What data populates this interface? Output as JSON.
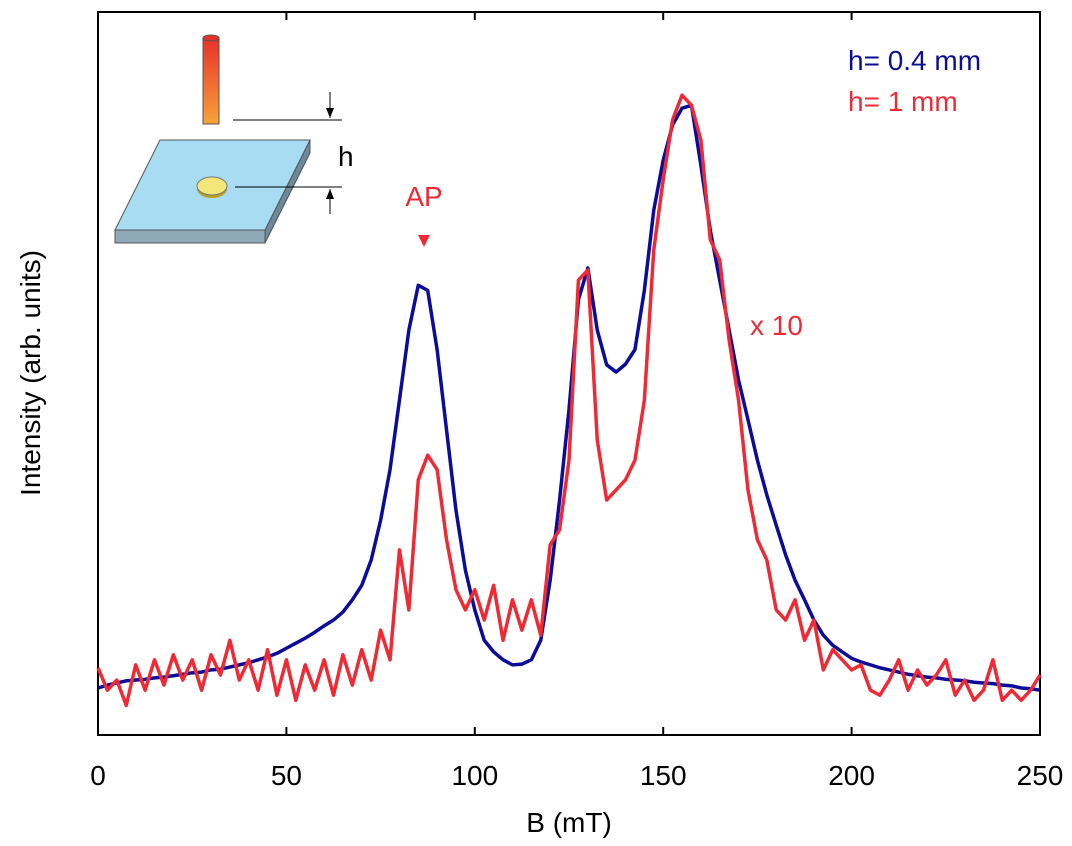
{
  "chart_data": {
    "type": "line",
    "x_label": "B (mT)",
    "y_label": "Intensity (arb. units)",
    "annotations": [
      "AP",
      "x 10",
      "h"
    ],
    "x": [
      0,
      2.5,
      5,
      7.5,
      10,
      12.5,
      15,
      17.5,
      20,
      22.5,
      25,
      27.5,
      30,
      32.5,
      35,
      37.5,
      40,
      42.5,
      45,
      47.5,
      50,
      52.5,
      55,
      57.5,
      60,
      62.5,
      65,
      67.5,
      70,
      72.5,
      75,
      77.5,
      80,
      82.5,
      85,
      87.5,
      90,
      92.5,
      95,
      97.5,
      100,
      102.5,
      105,
      107.5,
      110,
      112.5,
      115,
      117.5,
      120,
      122.5,
      125,
      127.5,
      130,
      132.5,
      135,
      137.5,
      140,
      142.5,
      145,
      147.5,
      150,
      152.5,
      155,
      157.5,
      160,
      162.5,
      165,
      167.5,
      170,
      172.5,
      175,
      177.5,
      180,
      182.5,
      185,
      187.5,
      190,
      192.5,
      195,
      197.5,
      200,
      202.5,
      205,
      207.5,
      210,
      212.5,
      215,
      217.5,
      220,
      222.5,
      225,
      227.5,
      230,
      232.5,
      235,
      237.5,
      240,
      242.5,
      245,
      247.5,
      250
    ],
    "series": [
      {
        "name": "h= 0.4 mm",
        "color": "#0c0c9a",
        "values": [
          6.5,
          6.9,
          7.2,
          7.5,
          7.6,
          7.7,
          7.9,
          8.0,
          8.2,
          8.4,
          8.6,
          8.7,
          9.0,
          9.1,
          9.4,
          9.7,
          10.0,
          10.4,
          10.8,
          11.3,
          12.0,
          12.7,
          13.4,
          14.2,
          15.1,
          15.9,
          17.0,
          18.7,
          20.7,
          24.2,
          29.7,
          36.7,
          46.3,
          56.0,
          62.2,
          61.5,
          53.3,
          42.2,
          31.1,
          22.8,
          17.3,
          13.1,
          11.5,
          10.4,
          9.7,
          9.8,
          10.4,
          13.1,
          21.4,
          32.5,
          45.0,
          60.2,
          64.6,
          56.0,
          51.2,
          50.2,
          51.3,
          53.3,
          61.5,
          72.6,
          79.5,
          84.4,
          86.7,
          87.1,
          78.8,
          69.8,
          62.9,
          56.0,
          49.1,
          43.6,
          38.0,
          33.2,
          29.0,
          24.9,
          21.4,
          18.7,
          15.9,
          13.8,
          12.4,
          11.5,
          10.6,
          10.1,
          9.7,
          9.3,
          9.0,
          8.7,
          8.4,
          8.2,
          8.0,
          7.9,
          7.7,
          7.6,
          7.5,
          7.3,
          7.2,
          7.1,
          6.9,
          6.8,
          6.5,
          6.4,
          6.2
        ]
      },
      {
        "name": "h= 1 mm",
        "color": "#ee2a35",
        "values": [
          9.3,
          6.2,
          7.6,
          4.1,
          9.7,
          6.2,
          10.4,
          6.9,
          11.1,
          7.6,
          10.4,
          6.2,
          11.1,
          8.3,
          13.1,
          7.6,
          10.4,
          6.2,
          11.8,
          5.5,
          10.4,
          4.8,
          9.7,
          6.2,
          10.4,
          5.5,
          11.1,
          6.9,
          11.8,
          7.6,
          14.5,
          10.4,
          25.6,
          17.3,
          35.3,
          38.7,
          36.7,
          27.0,
          20.1,
          17.3,
          20.1,
          15.9,
          20.7,
          13.1,
          18.7,
          14.5,
          18.7,
          13.8,
          26.3,
          28.4,
          38.0,
          62.9,
          64.3,
          40.8,
          32.5,
          33.9,
          35.3,
          38.0,
          46.3,
          67.1,
          76.8,
          85.1,
          88.5,
          87.1,
          82.3,
          68.5,
          65.7,
          54.6,
          46.3,
          33.9,
          27.0,
          24.2,
          17.3,
          15.9,
          18.7,
          13.1,
          15.9,
          9.0,
          11.8,
          10.4,
          9.0,
          9.7,
          6.2,
          5.5,
          7.6,
          10.4,
          6.2,
          9.0,
          6.9,
          8.3,
          10.4,
          5.5,
          7.6,
          4.8,
          6.2,
          10.4,
          4.8,
          6.2,
          4.8,
          6.2,
          8.3
        ]
      }
    ],
    "xlim": [
      0,
      250
    ],
    "xticks": [
      0,
      50,
      100,
      150,
      200,
      250
    ],
    "ylim": [
      0,
      100
    ],
    "legend": "top-right"
  }
}
